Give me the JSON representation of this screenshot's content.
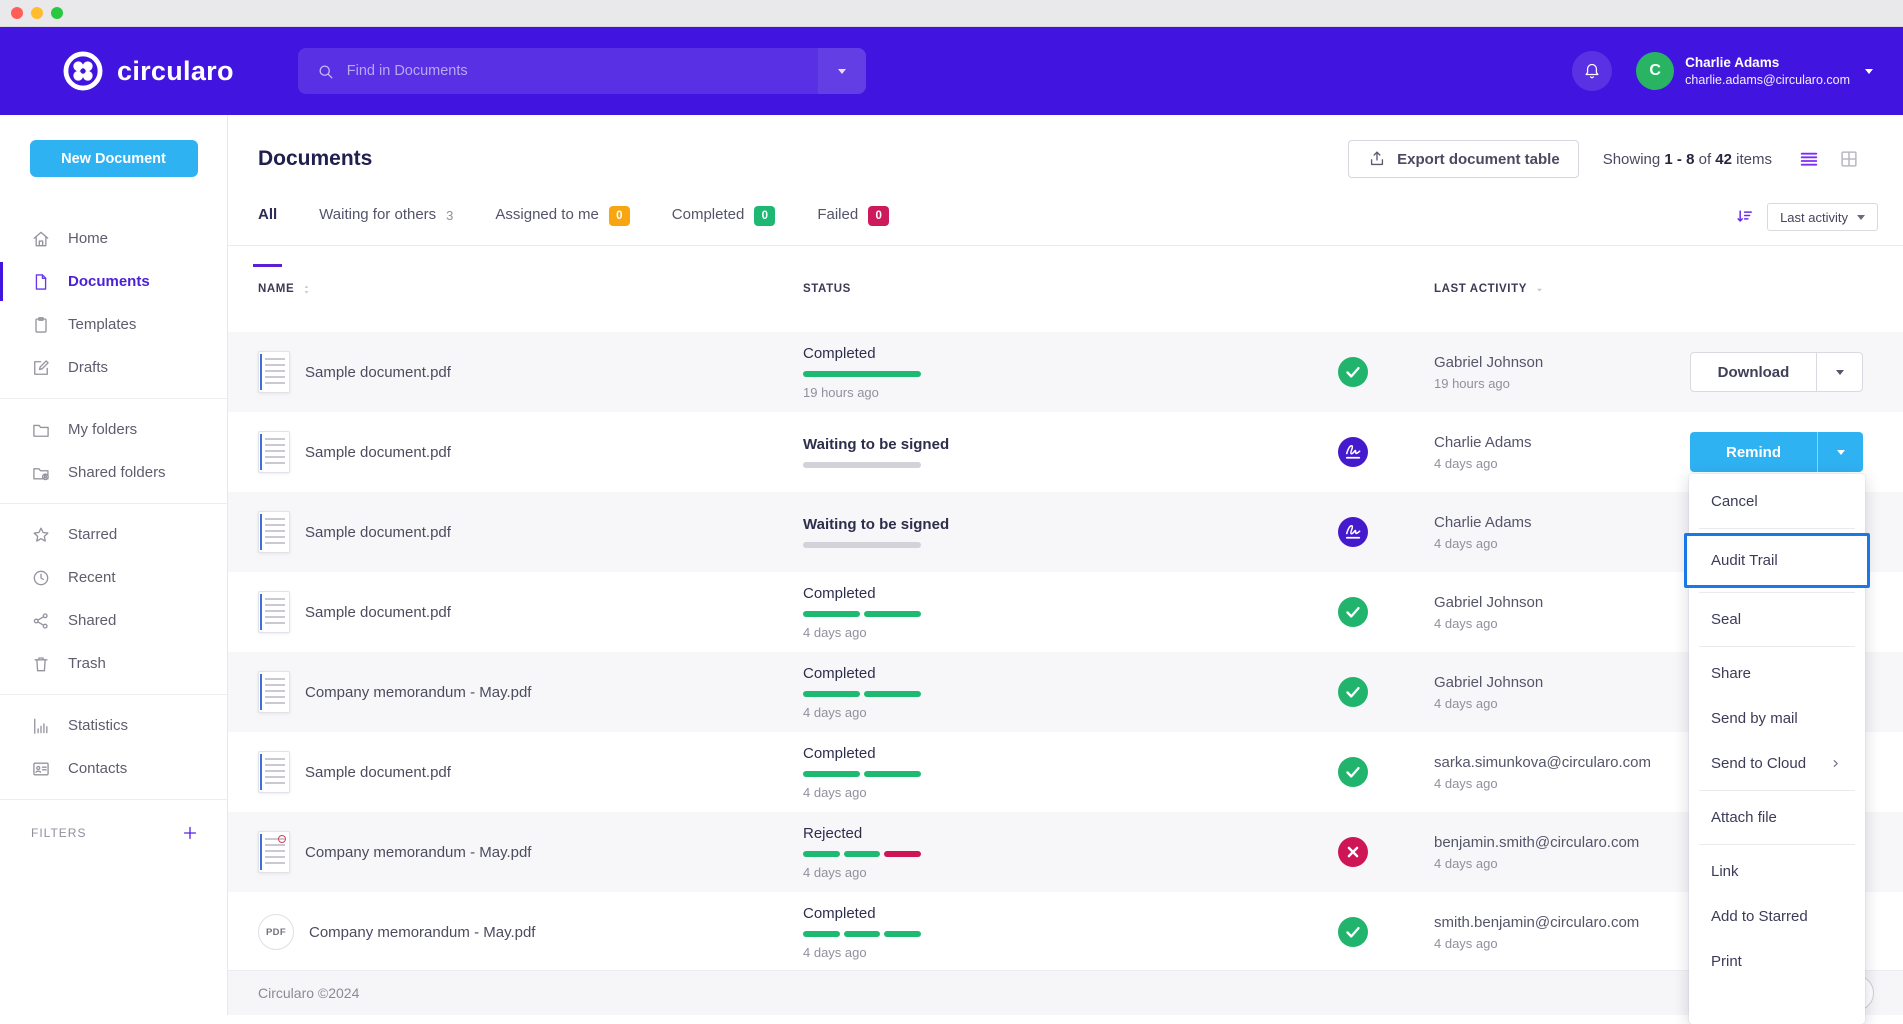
{
  "header": {
    "brand": "circularo",
    "search_placeholder": "Find in Documents",
    "user_name": "Charlie Adams",
    "user_email": "charlie.adams@circularo.com",
    "user_initial": "C"
  },
  "sidebar": {
    "new_document_label": "New Document",
    "filters_label": "FILTERS",
    "groups": [
      {
        "items": [
          {
            "label": "Home",
            "icon": "home"
          },
          {
            "label": "Documents",
            "icon": "document",
            "active": true
          },
          {
            "label": "Templates",
            "icon": "template"
          },
          {
            "label": "Drafts",
            "icon": "draft"
          }
        ]
      },
      {
        "items": [
          {
            "label": "My folders",
            "icon": "folder"
          },
          {
            "label": "Shared folders",
            "icon": "shared-folder"
          }
        ]
      },
      {
        "items": [
          {
            "label": "Starred",
            "icon": "star"
          },
          {
            "label": "Recent",
            "icon": "clock"
          },
          {
            "label": "Shared",
            "icon": "share"
          },
          {
            "label": "Trash",
            "icon": "trash"
          }
        ]
      },
      {
        "items": [
          {
            "label": "Statistics",
            "icon": "stats"
          },
          {
            "label": "Contacts",
            "icon": "contacts"
          }
        ]
      }
    ]
  },
  "toolbar": {
    "page_title": "Documents",
    "export_label": "Export document table",
    "showing_prefix": "Showing",
    "showing_range": "1 - 8",
    "showing_of": "of",
    "showing_total": "42",
    "showing_suffix": "items"
  },
  "tabs": [
    {
      "label": "All",
      "active": true
    },
    {
      "label": "Waiting for others",
      "count": "3",
      "badge": "none"
    },
    {
      "label": "Assigned to me",
      "count": "0",
      "badge": "orange"
    },
    {
      "label": "Completed",
      "count": "0",
      "badge": "green"
    },
    {
      "label": "Failed",
      "count": "0",
      "badge": "red"
    }
  ],
  "sort_control": {
    "label": "Last activity"
  },
  "table": {
    "columns": [
      "NAME",
      "STATUS",
      "LAST ACTIVITY"
    ],
    "rows": [
      {
        "name": "Sample document.pdf",
        "thumb": "doc",
        "status": "Completed",
        "progress": [
          "green"
        ],
        "status_time": "19 hours ago",
        "status_icon": "check",
        "actor": "Gabriel Johnson",
        "actor_time": "19 hours ago",
        "action": {
          "label": "Download",
          "style": "outline"
        }
      },
      {
        "name": "Sample document.pdf",
        "thumb": "doc",
        "status": "Waiting to be signed",
        "progress": [
          "gray"
        ],
        "status_time": "",
        "status_icon": "sign",
        "actor": "Charlie Adams",
        "actor_time": "4 days ago",
        "action": {
          "label": "Remind",
          "style": "primary"
        }
      },
      {
        "name": "Sample document.pdf",
        "thumb": "doc",
        "status": "Waiting to be signed",
        "progress": [
          "gray"
        ],
        "status_time": "",
        "status_icon": "sign",
        "actor": "Charlie Adams",
        "actor_time": "4 days ago",
        "action": null
      },
      {
        "name": "Sample document.pdf",
        "thumb": "doc",
        "status": "Completed",
        "progress": [
          "green",
          "green"
        ],
        "status_time": "4 days ago",
        "status_icon": "check",
        "actor": "Gabriel Johnson",
        "actor_time": "4 days ago",
        "action": null
      },
      {
        "name": "Company memorandum - May.pdf",
        "thumb": "doc",
        "status": "Completed",
        "progress": [
          "green",
          "green"
        ],
        "status_time": "4 days ago",
        "status_icon": "check",
        "actor": "Gabriel Johnson",
        "actor_time": "4 days ago",
        "action": null
      },
      {
        "name": "Sample document.pdf",
        "thumb": "doc",
        "status": "Completed",
        "progress": [
          "green",
          "green"
        ],
        "status_time": "4 days ago",
        "status_icon": "check",
        "actor": "sarka.simunkova@circularo.com",
        "actor_time": "4 days ago",
        "action": null
      },
      {
        "name": "Company memorandum - May.pdf",
        "thumb": "doc-red",
        "status": "Rejected",
        "progress": [
          "green",
          "green",
          "red"
        ],
        "status_time": "4 days ago",
        "status_icon": "reject",
        "actor": "benjamin.smith@circularo.com",
        "actor_time": "4 days ago",
        "action": null
      },
      {
        "name": "Company memorandum - May.pdf",
        "thumb": "pdf",
        "status": "Completed",
        "progress": [
          "green",
          "green",
          "green"
        ],
        "status_time": "4 days ago",
        "status_icon": "check",
        "actor": "smith.benjamin@circularo.com",
        "actor_time": "4 days ago",
        "action": null
      }
    ]
  },
  "action_menu": {
    "groups": [
      [
        {
          "label": "Cancel"
        }
      ],
      [
        {
          "label": "Audit Trail",
          "highlighted": true
        }
      ],
      [
        {
          "label": "Seal"
        }
      ],
      [
        {
          "label": "Share"
        },
        {
          "label": "Send by mail"
        },
        {
          "label": "Send to Cloud",
          "submenu": true
        }
      ],
      [
        {
          "label": "Attach file"
        }
      ],
      [
        {
          "label": "Link"
        },
        {
          "label": "Add to Starred"
        },
        {
          "label": "Print"
        }
      ]
    ]
  },
  "footer": {
    "copyright": "Circularo ©2024"
  },
  "pdf_thumb_label": "PDF",
  "colors": {
    "brand_purple": "#4214e0",
    "action_blue": "#2fb2f2",
    "success_green": "#1fba71",
    "danger_red": "#ce1556",
    "warning_orange": "#f7a511",
    "focus_blue": "#1a78e6"
  }
}
